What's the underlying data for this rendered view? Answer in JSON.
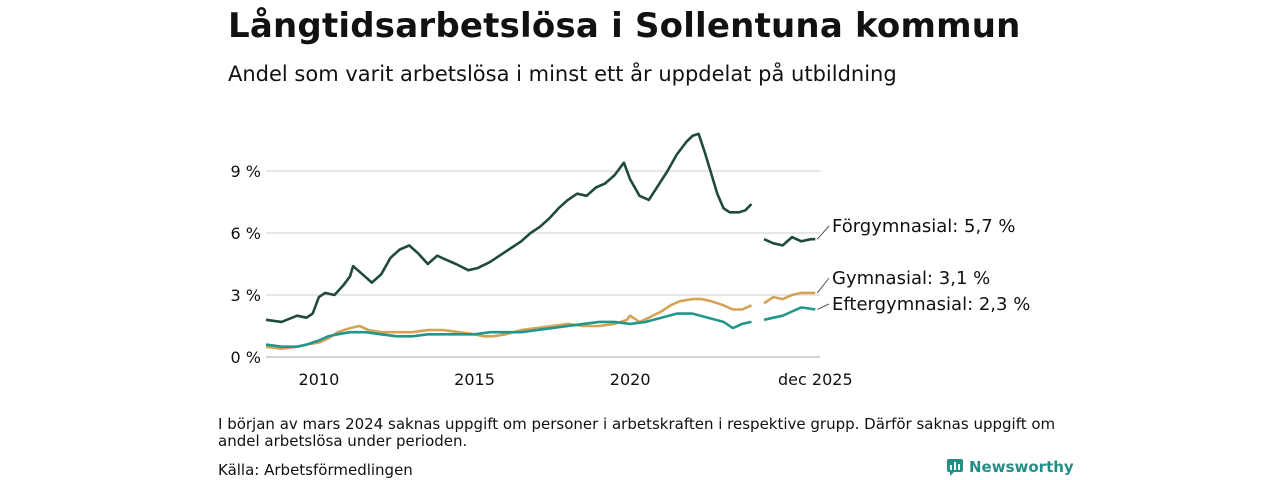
{
  "title": "Långtidsarbetslösa i Sollentuna kommun",
  "subtitle": "Andel som varit arbetslösa i minst ett år uppdelat på utbildning",
  "footnote": "I början av mars 2024 saknas uppgift om personer i arbetskraften i respektive grupp. Därför saknas uppgift om andel arbetslösa under perioden.",
  "source": "Källa: Arbetsförmedlingen",
  "brand": "Newsworthy",
  "colors": {
    "forgymnasial": "#1f4a3f",
    "gymnasial": "#d4a357",
    "eftergymnasial": "#21968a",
    "grid": "#dddddd",
    "brand": "#238f86"
  },
  "chart_data": {
    "type": "line",
    "title": "Långtidsarbetslösa i Sollentuna kommun",
    "xlabel": "",
    "ylabel": "",
    "xlim": [
      2008.3,
      2026.1
    ],
    "ylim": [
      0,
      10.5
    ],
    "yticks": [
      0,
      3,
      6,
      9
    ],
    "ytick_labels": [
      "0 %",
      "3 %",
      "6 %",
      "9 %"
    ],
    "xticks": [
      2010,
      2015,
      2020,
      2025.95
    ],
    "xtick_labels": [
      "2010",
      "2015",
      "2020",
      "dec 2025"
    ],
    "gap": [
      2023.95,
      2024.3
    ],
    "series": [
      {
        "name": "Förgymnasial",
        "label": "Förgymnasial: 5,7 %",
        "color": "#1f4a3f",
        "points": [
          [
            2008.3,
            1.8
          ],
          [
            2008.8,
            1.7
          ],
          [
            2009.3,
            2.0
          ],
          [
            2009.6,
            1.9
          ],
          [
            2009.8,
            2.1
          ],
          [
            2010.0,
            2.9
          ],
          [
            2010.2,
            3.1
          ],
          [
            2010.5,
            3.0
          ],
          [
            2010.8,
            3.5
          ],
          [
            2011.0,
            3.9
          ],
          [
            2011.1,
            4.4
          ],
          [
            2011.4,
            4.0
          ],
          [
            2011.7,
            3.6
          ],
          [
            2012.0,
            4.0
          ],
          [
            2012.3,
            4.8
          ],
          [
            2012.6,
            5.2
          ],
          [
            2012.9,
            5.4
          ],
          [
            2013.2,
            5.0
          ],
          [
            2013.5,
            4.5
          ],
          [
            2013.8,
            4.9
          ],
          [
            2014.1,
            4.7
          ],
          [
            2014.4,
            4.5
          ],
          [
            2014.8,
            4.2
          ],
          [
            2015.1,
            4.3
          ],
          [
            2015.5,
            4.6
          ],
          [
            2015.9,
            5.0
          ],
          [
            2016.2,
            5.3
          ],
          [
            2016.5,
            5.6
          ],
          [
            2016.8,
            6.0
          ],
          [
            2017.1,
            6.3
          ],
          [
            2017.4,
            6.7
          ],
          [
            2017.7,
            7.2
          ],
          [
            2018.0,
            7.6
          ],
          [
            2018.3,
            7.9
          ],
          [
            2018.6,
            7.8
          ],
          [
            2018.9,
            8.2
          ],
          [
            2019.2,
            8.4
          ],
          [
            2019.5,
            8.8
          ],
          [
            2019.8,
            9.4
          ],
          [
            2020.0,
            8.6
          ],
          [
            2020.3,
            7.8
          ],
          [
            2020.6,
            7.6
          ],
          [
            2020.9,
            8.3
          ],
          [
            2021.2,
            9.0
          ],
          [
            2021.5,
            9.8
          ],
          [
            2021.8,
            10.4
          ],
          [
            2022.0,
            10.7
          ],
          [
            2022.2,
            10.8
          ],
          [
            2022.4,
            9.9
          ],
          [
            2022.6,
            8.9
          ],
          [
            2022.8,
            7.9
          ],
          [
            2023.0,
            7.2
          ],
          [
            2023.2,
            7.0
          ],
          [
            2023.5,
            7.0
          ],
          [
            2023.7,
            7.1
          ],
          [
            2023.9,
            7.4
          ],
          [
            2024.3,
            5.7
          ],
          [
            2024.6,
            5.5
          ],
          [
            2024.9,
            5.4
          ],
          [
            2025.2,
            5.8
          ],
          [
            2025.5,
            5.6
          ],
          [
            2025.8,
            5.7
          ],
          [
            2025.95,
            5.7
          ]
        ]
      },
      {
        "name": "Gymnasial",
        "label": "Gymnasial: 3,1 %",
        "color": "#d4a357",
        "points": [
          [
            2008.3,
            0.5
          ],
          [
            2008.8,
            0.4
          ],
          [
            2009.3,
            0.5
          ],
          [
            2009.6,
            0.6
          ],
          [
            2010.0,
            0.7
          ],
          [
            2010.3,
            0.9
          ],
          [
            2010.6,
            1.2
          ],
          [
            2011.0,
            1.4
          ],
          [
            2011.3,
            1.5
          ],
          [
            2011.6,
            1.3
          ],
          [
            2012.0,
            1.2
          ],
          [
            2012.5,
            1.2
          ],
          [
            2013.0,
            1.2
          ],
          [
            2013.5,
            1.3
          ],
          [
            2014.0,
            1.3
          ],
          [
            2014.5,
            1.2
          ],
          [
            2015.0,
            1.1
          ],
          [
            2015.3,
            1.0
          ],
          [
            2015.6,
            1.0
          ],
          [
            2016.0,
            1.1
          ],
          [
            2016.5,
            1.3
          ],
          [
            2017.0,
            1.4
          ],
          [
            2017.5,
            1.5
          ],
          [
            2018.0,
            1.6
          ],
          [
            2018.5,
            1.5
          ],
          [
            2019.0,
            1.5
          ],
          [
            2019.5,
            1.6
          ],
          [
            2019.9,
            1.8
          ],
          [
            2020.0,
            2.0
          ],
          [
            2020.3,
            1.7
          ],
          [
            2020.6,
            1.9
          ],
          [
            2021.0,
            2.2
          ],
          [
            2021.3,
            2.5
          ],
          [
            2021.6,
            2.7
          ],
          [
            2022.0,
            2.8
          ],
          [
            2022.3,
            2.8
          ],
          [
            2022.6,
            2.7
          ],
          [
            2023.0,
            2.5
          ],
          [
            2023.3,
            2.3
          ],
          [
            2023.6,
            2.3
          ],
          [
            2023.9,
            2.5
          ],
          [
            2024.3,
            2.6
          ],
          [
            2024.6,
            2.9
          ],
          [
            2024.9,
            2.8
          ],
          [
            2025.2,
            3.0
          ],
          [
            2025.5,
            3.1
          ],
          [
            2025.95,
            3.1
          ]
        ]
      },
      {
        "name": "Eftergymnasial",
        "label": "Eftergymnasial: 2,3 %",
        "color": "#21968a",
        "points": [
          [
            2008.3,
            0.6
          ],
          [
            2008.8,
            0.5
          ],
          [
            2009.3,
            0.5
          ],
          [
            2009.6,
            0.6
          ],
          [
            2010.0,
            0.8
          ],
          [
            2010.3,
            1.0
          ],
          [
            2010.6,
            1.1
          ],
          [
            2011.0,
            1.2
          ],
          [
            2011.5,
            1.2
          ],
          [
            2012.0,
            1.1
          ],
          [
            2012.5,
            1.0
          ],
          [
            2013.0,
            1.0
          ],
          [
            2013.5,
            1.1
          ],
          [
            2014.0,
            1.1
          ],
          [
            2014.5,
            1.1
          ],
          [
            2015.0,
            1.1
          ],
          [
            2015.5,
            1.2
          ],
          [
            2016.0,
            1.2
          ],
          [
            2016.5,
            1.2
          ],
          [
            2017.0,
            1.3
          ],
          [
            2017.5,
            1.4
          ],
          [
            2018.0,
            1.5
          ],
          [
            2018.5,
            1.6
          ],
          [
            2019.0,
            1.7
          ],
          [
            2019.5,
            1.7
          ],
          [
            2020.0,
            1.6
          ],
          [
            2020.5,
            1.7
          ],
          [
            2021.0,
            1.9
          ],
          [
            2021.5,
            2.1
          ],
          [
            2022.0,
            2.1
          ],
          [
            2022.5,
            1.9
          ],
          [
            2023.0,
            1.7
          ],
          [
            2023.3,
            1.4
          ],
          [
            2023.6,
            1.6
          ],
          [
            2023.9,
            1.7
          ],
          [
            2024.3,
            1.8
          ],
          [
            2024.6,
            1.9
          ],
          [
            2024.9,
            2.0
          ],
          [
            2025.2,
            2.2
          ],
          [
            2025.5,
            2.4
          ],
          [
            2025.95,
            2.3
          ]
        ]
      }
    ]
  }
}
